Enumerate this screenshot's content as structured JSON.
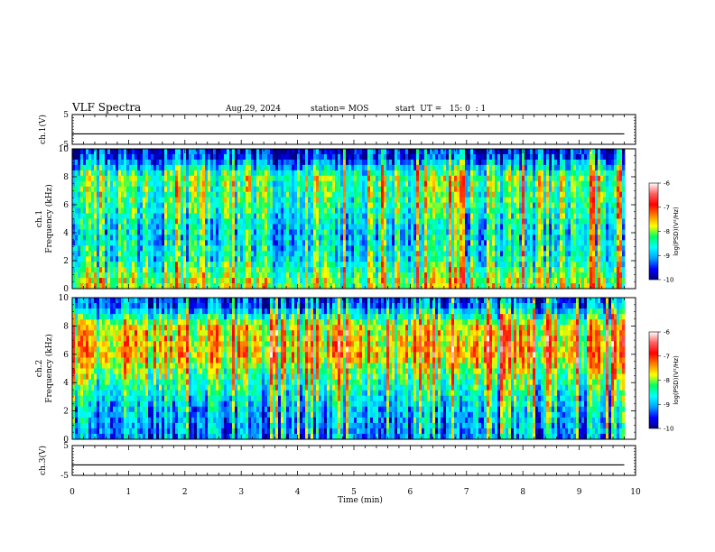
{
  "header": {
    "title": "VLF Spectra",
    "date": "Aug.29, 2024",
    "station": "station= MOS",
    "start": "start  UT =   15: 0  : 1"
  },
  "colorscale": {
    "stops": [
      "#000080",
      "#0000ff",
      "#00a0ff",
      "#00ffff",
      "#00ff60",
      "#ffff00",
      "#ff8000",
      "#ff0000",
      "#ff6060",
      "#ffffff"
    ]
  },
  "chart_data": [
    {
      "type": "line",
      "ylabel": "ch.1(V)",
      "ylim": [
        -5,
        5
      ],
      "yticks": [
        "5",
        "-5"
      ],
      "x": [
        0,
        9.8
      ],
      "y": [
        -1.5,
        -1.5
      ],
      "xlim": [
        0,
        10
      ]
    },
    {
      "type": "heatmap",
      "ylabel_1": "ch.1",
      "ylabel_2": "Frequency (kHz)",
      "ylim": [
        0,
        10
      ],
      "yticks": [
        "0",
        "2",
        "4",
        "6",
        "8",
        "10"
      ],
      "xlim": [
        0,
        10
      ],
      "data_xmax": 9.8,
      "colorbar": {
        "label": "log(PSD)(V²/Hz)",
        "range": [
          -10,
          -6
        ],
        "ticks": [
          "-6",
          "-7",
          "-8",
          "-9",
          "-10"
        ]
      },
      "band_profile_khz": [
        0.5,
        2,
        4,
        6,
        8,
        9.5
      ],
      "band_profile_log_psd": [
        -8.0,
        -8.6,
        -8.8,
        -8.4,
        -8.2,
        -9.6
      ]
    },
    {
      "type": "heatmap",
      "ylabel_1": "ch.2",
      "ylabel_2": "Frequency (kHz)",
      "ylim": [
        0,
        10
      ],
      "yticks": [
        "0",
        "2",
        "4",
        "6",
        "8",
        "10"
      ],
      "xlim": [
        0,
        10
      ],
      "data_xmax": 9.8,
      "colorbar": {
        "label": "log(PSD)(V²/Hz)",
        "range": [
          -10,
          -6
        ],
        "ticks": [
          "-6",
          "-7",
          "-8",
          "-9",
          "-10"
        ]
      },
      "band_profile_khz": [
        0.5,
        2,
        4,
        6,
        8,
        9.5
      ],
      "band_profile_log_psd": [
        -9.2,
        -9.0,
        -8.4,
        -7.6,
        -7.8,
        -9.4
      ]
    },
    {
      "type": "line",
      "ylabel": "ch.3(V)",
      "ylim": [
        -5,
        5
      ],
      "yticks": [
        "5",
        "-5"
      ],
      "x": [
        0,
        9.8
      ],
      "y": [
        -1.5,
        -1.5
      ],
      "xlim": [
        0,
        10
      ],
      "xlabel": "Time (min)",
      "xticks": [
        "0",
        "1",
        "2",
        "3",
        "4",
        "5",
        "6",
        "7",
        "8",
        "9",
        "10"
      ]
    }
  ]
}
